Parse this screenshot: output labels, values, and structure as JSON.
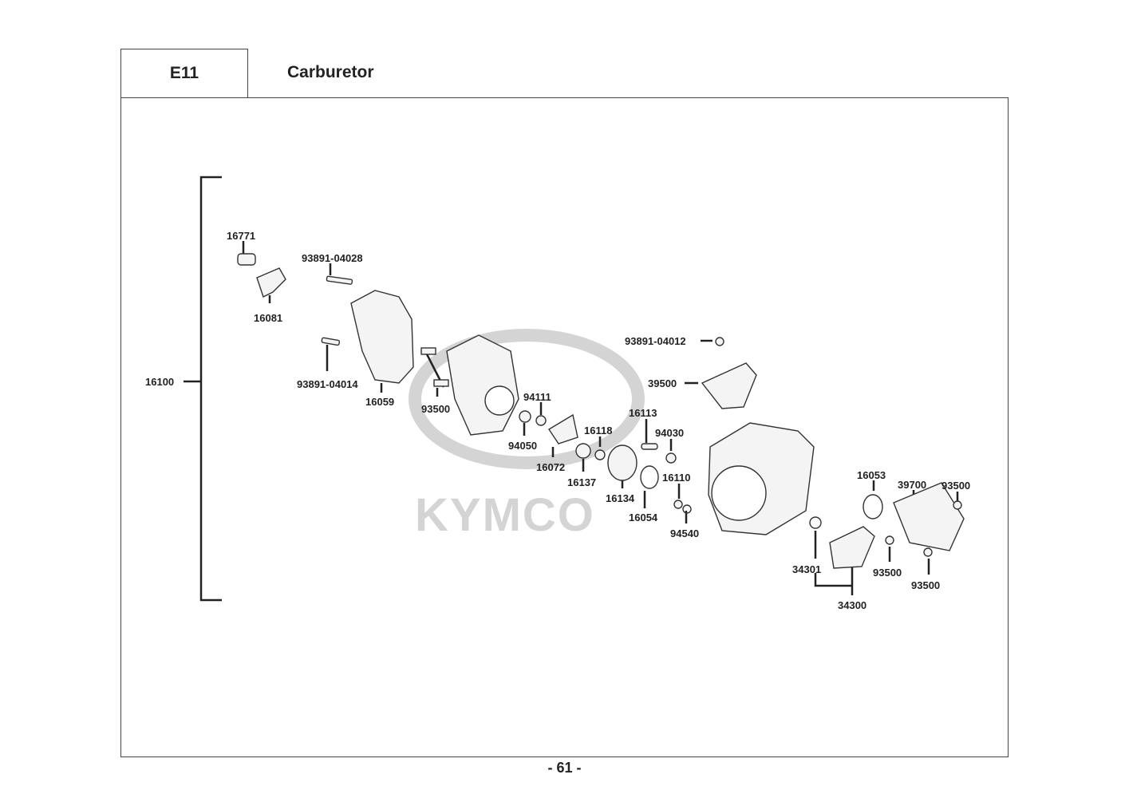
{
  "header": {
    "section_code": "E11",
    "title": "Carburetor"
  },
  "watermark": {
    "logo_text": "KYMCO",
    "color": "#d0d0d0"
  },
  "parts": [
    {
      "id": "16100"
    },
    {
      "id": "16771"
    },
    {
      "id": "93891-04028"
    },
    {
      "id": "16081"
    },
    {
      "id": "93891-04014"
    },
    {
      "id": "16059"
    },
    {
      "id": "93500"
    },
    {
      "id": "94111"
    },
    {
      "id": "94050"
    },
    {
      "id": "16072"
    },
    {
      "id": "16118"
    },
    {
      "id": "16137"
    },
    {
      "id": "16113"
    },
    {
      "id": "94030"
    },
    {
      "id": "16134"
    },
    {
      "id": "16054"
    },
    {
      "id": "16110"
    },
    {
      "id": "94540"
    },
    {
      "id": "93891-04012"
    },
    {
      "id": "39500"
    },
    {
      "id": "16053"
    },
    {
      "id": "39700"
    },
    {
      "id": "93500"
    },
    {
      "id": "34301"
    },
    {
      "id": "93500"
    },
    {
      "id": "93500"
    },
    {
      "id": "34300"
    }
  ],
  "footer": {
    "page_number": "- 61 -"
  }
}
